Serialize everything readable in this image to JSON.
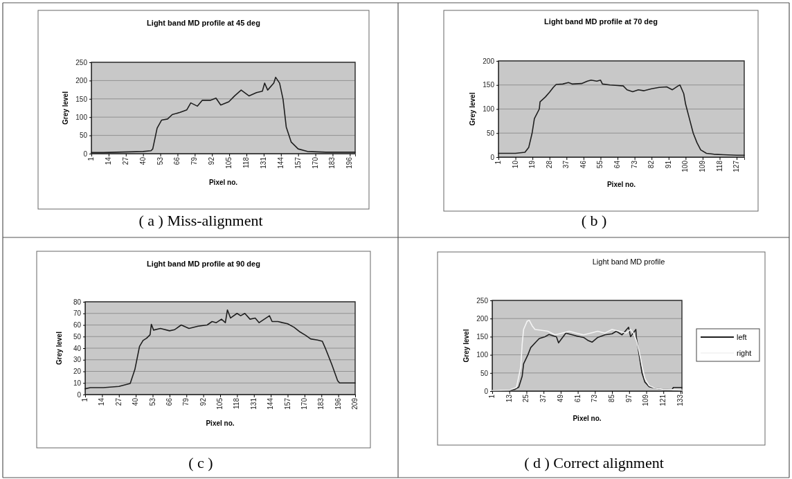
{
  "chart_data": [
    {
      "type": "line",
      "title": "Light band MD profile at 45 deg",
      "xlabel": "Pixel no.",
      "ylabel": "Grey level",
      "annotations": [
        "( a ) Miss-alignment"
      ],
      "xlim": [
        1,
        200
      ],
      "xticks": [
        1,
        14,
        27,
        40,
        53,
        66,
        79,
        92,
        105,
        118,
        131,
        144,
        157,
        170,
        183,
        196
      ],
      "ylim": [
        0,
        250
      ],
      "yticks": [
        0,
        50,
        100,
        150,
        200,
        250
      ],
      "grid": "y",
      "series": [
        {
          "color": "#1e1e1e",
          "x": [
            1,
            10,
            20,
            30,
            40,
            46,
            47.3,
            50.6,
            54,
            58.5,
            62,
            68,
            73,
            76,
            81,
            84.6,
            90.7,
            95,
            98.6,
            104.7,
            109,
            114,
            120,
            125.6,
            130,
            131.7,
            134,
            138.6,
            140,
            143,
            145.6,
            148,
            151.7,
            157,
            164,
            178,
            196,
            200
          ],
          "values": [
            3,
            3,
            4,
            5,
            6,
            8,
            13,
            70,
            92,
            95,
            107,
            113,
            120,
            139,
            130,
            146,
            146,
            152,
            133,
            142,
            158,
            174,
            158,
            167,
            171,
            193,
            174,
            193,
            209,
            193,
            149,
            73,
            32,
            13,
            6,
            4,
            4,
            4
          ]
        }
      ]
    },
    {
      "type": "line",
      "title": "Light band MD profile at 70 deg",
      "xlabel": "Pixel no.",
      "ylabel": "Grey level",
      "annotations": [
        "( b )"
      ],
      "xlim": [
        1,
        131
      ],
      "xticks": [
        1,
        10,
        19,
        28,
        37,
        46,
        55,
        64,
        73,
        82,
        91,
        100,
        109,
        118,
        127
      ],
      "ylim": [
        0,
        200
      ],
      "yticks": [
        0,
        50,
        100,
        150,
        200
      ],
      "grid": "y",
      "series": [
        {
          "color": "#1e1e1e",
          "x": [
            1,
            10,
            15,
            17,
            18.8,
            20,
            22.6,
            23,
            25.8,
            28,
            30,
            31.5,
            35,
            38,
            40,
            45,
            48,
            50,
            53,
            55,
            56,
            60,
            64,
            67,
            69,
            72,
            75,
            78,
            82,
            86,
            90,
            93,
            96,
            97,
            99,
            100,
            102,
            104,
            106,
            108,
            111,
            115,
            120,
            127,
            131
          ],
          "values": [
            8,
            8,
            10,
            20,
            50,
            80,
            100,
            115,
            125,
            135,
            145,
            151,
            152,
            155,
            152,
            153,
            158,
            160,
            158,
            160,
            152,
            150,
            149,
            148,
            140,
            136,
            140,
            138,
            142,
            145,
            146,
            140,
            148,
            150,
            132,
            110,
            80,
            50,
            30,
            15,
            8,
            6,
            5,
            4,
            4
          ]
        }
      ]
    },
    {
      "type": "line",
      "title": "Light band MD profile at 90 deg",
      "xlabel": "Pixel no.",
      "ylabel": "Grey level",
      "annotations": [
        "( c )"
      ],
      "xlim": [
        1,
        209
      ],
      "xticks": [
        1,
        14,
        27,
        40,
        53,
        66,
        79,
        92,
        105,
        118,
        131,
        144,
        157,
        170,
        183,
        196,
        209
      ],
      "ylim": [
        0,
        80
      ],
      "yticks": [
        0,
        10,
        20,
        30,
        40,
        50,
        60,
        70,
        80
      ],
      "grid": "y",
      "series": [
        {
          "color": "#1e1e1e",
          "x": [
            1,
            5,
            15,
            27,
            35.7,
            39.3,
            42.9,
            45.6,
            48.3,
            51,
            52,
            53.7,
            59,
            66,
            70,
            75,
            81,
            88,
            95,
            98.8,
            102,
            106,
            109,
            110.6,
            113,
            118,
            120.8,
            124,
            128,
            132,
            135,
            139,
            143,
            145,
            149.5,
            153,
            157,
            162,
            166.5,
            171,
            174.7,
            180,
            183.7,
            186.4,
            191,
            195.5,
            197,
            209
          ],
          "values": [
            5,
            6,
            6,
            7,
            9.6,
            21.6,
            41.6,
            46.6,
            48.6,
            51.6,
            60.6,
            55.6,
            57,
            55,
            56,
            60,
            57,
            59,
            60,
            63,
            62,
            65,
            62,
            73,
            66,
            70,
            68,
            70,
            65,
            66,
            62,
            65,
            68,
            63,
            63,
            62,
            61,
            58,
            54,
            51,
            48,
            47,
            46,
            39,
            26,
            12,
            10,
            10
          ]
        }
      ]
    },
    {
      "type": "line",
      "title": "Light band MD profile",
      "xlabel": "Pixel no.",
      "ylabel": "Grey level",
      "annotations": [
        "( d ) Correct alignment"
      ],
      "xlim": [
        1,
        134
      ],
      "xticks": [
        1,
        13,
        25,
        37,
        49,
        61,
        73,
        85,
        97,
        109,
        121,
        133
      ],
      "ylim": [
        0,
        250
      ],
      "yticks": [
        0,
        50,
        100,
        150,
        200,
        250
      ],
      "grid": "y",
      "legend": "right",
      "series": [
        {
          "name": "left",
          "color": "#1e1e1e",
          "x": [
            1,
            13,
            17,
            19.6,
            22,
            23,
            26,
            28,
            32,
            34,
            38,
            40.8,
            46,
            47.5,
            52.6,
            60,
            65,
            68,
            71,
            75,
            80,
            85,
            88,
            92,
            96.6,
            98,
            101.7,
            102,
            104,
            106,
            108,
            111,
            115,
            121,
            127,
            128,
            134
          ],
          "values": [
            2,
            3,
            5,
            11,
            41,
            75,
            100,
            120,
            137,
            145,
            150,
            156,
            150,
            133,
            160,
            152,
            148,
            140,
            135,
            148,
            155,
            158,
            165,
            155,
            176,
            150,
            170,
            150,
            100,
            50,
            25,
            12,
            8,
            5,
            4,
            10,
            10
          ]
        },
        {
          "name": "right",
          "color": "#f4f4f4",
          "x": [
            1,
            13,
            18,
            21,
            22,
            23,
            25.5,
            27,
            29,
            31,
            35,
            40,
            45,
            50,
            55,
            60,
            65,
            70,
            75,
            80,
            85,
            90,
            95,
            98,
            100,
            102,
            104,
            106,
            108,
            111,
            115,
            121,
            127,
            134
          ],
          "values": [
            2,
            3,
            10,
            67,
            130,
            170,
            193,
            195,
            180,
            170,
            168,
            165,
            155,
            160,
            165,
            160,
            155,
            160,
            165,
            160,
            170,
            165,
            160,
            170,
            160,
            140,
            110,
            70,
            35,
            15,
            8,
            5,
            4,
            3
          ]
        }
      ]
    }
  ]
}
